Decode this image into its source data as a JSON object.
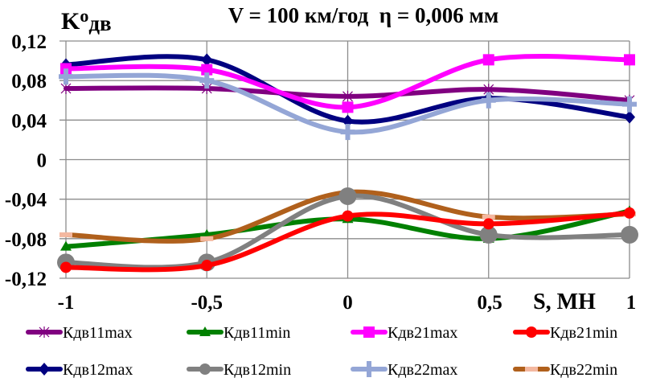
{
  "chart_data": {
    "type": "line",
    "title": "V = 100 км/год  η = 0,006 мм",
    "ylabel": "Kодв",
    "ylabel_main": "K",
    "ylabel_sup": "о",
    "ylabel_sub": "дв",
    "xlabel": "S, МН",
    "x": [
      -1,
      -0.5,
      0,
      0.5,
      1
    ],
    "xticks": [
      "-1",
      "-0,5",
      "0",
      "0,5",
      "1"
    ],
    "xlim": [
      -1,
      1
    ],
    "ylim": [
      -0.12,
      0.12
    ],
    "yticks": [
      {
        "value": 0.12,
        "label": "0,12"
      },
      {
        "value": 0.08,
        "label": "0,08"
      },
      {
        "value": 0.04,
        "label": "0,04"
      },
      {
        "value": 0,
        "label": "0"
      },
      {
        "value": -0.04,
        "label": "-0,04"
      },
      {
        "value": -0.08,
        "label": "-0,08"
      },
      {
        "value": -0.12,
        "label": "-0,12"
      }
    ],
    "grid": true,
    "legend_position": "bottom",
    "smooth": true,
    "series": [
      {
        "name": "Кдв11max",
        "color": "#800080",
        "marker": "star",
        "values": [
          0.072,
          0.072,
          0.064,
          0.071,
          0.06
        ]
      },
      {
        "name": "Кдв11min",
        "color": "#008000",
        "marker": "triangle",
        "values": [
          -0.088,
          -0.076,
          -0.06,
          -0.08,
          -0.052
        ]
      },
      {
        "name": "Кдв21max",
        "color": "#ff00ff",
        "marker": "square",
        "values": [
          0.092,
          0.091,
          0.053,
          0.101,
          0.101
        ]
      },
      {
        "name": "Кдв21min",
        "color": "#ff0000",
        "marker": "circle",
        "values": [
          -0.109,
          -0.107,
          -0.057,
          -0.065,
          -0.054
        ]
      },
      {
        "name": "Кдв12max",
        "color": "#000080",
        "marker": "diamond",
        "values": [
          0.096,
          0.101,
          0.039,
          0.062,
          0.043
        ]
      },
      {
        "name": "Кдв12min",
        "color": "#808080",
        "marker": "circle-large",
        "values": [
          -0.104,
          -0.104,
          -0.037,
          -0.076,
          -0.076
        ]
      },
      {
        "name": "Кдв22max",
        "color": "#94a6d6",
        "marker": "plus",
        "values": [
          0.084,
          0.08,
          0.028,
          0.06,
          0.056
        ]
      },
      {
        "name": "Кдв22min",
        "color": "#b0601c",
        "marker": "dash",
        "marker_color": "#f4b8a0",
        "values": [
          -0.076,
          -0.08,
          -0.033,
          -0.058,
          -0.055
        ]
      }
    ]
  }
}
